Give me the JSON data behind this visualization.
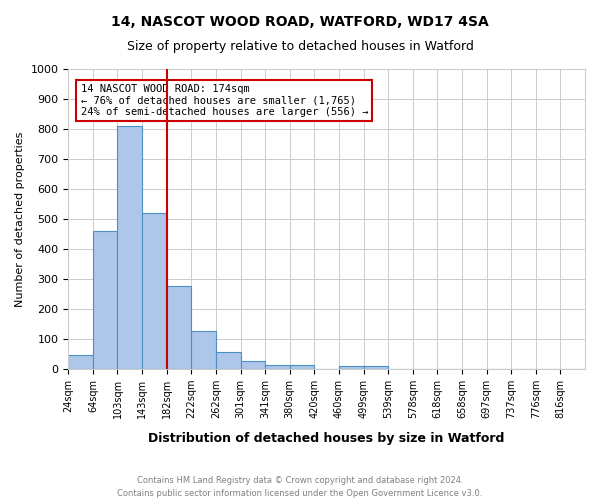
{
  "title1": "14, NASCOT WOOD ROAD, WATFORD, WD17 4SA",
  "title2": "Size of property relative to detached houses in Watford",
  "xlabel": "Distribution of detached houses by size in Watford",
  "ylabel": "Number of detached properties",
  "footnote1": "Contains HM Land Registry data © Crown copyright and database right 2024.",
  "footnote2": "Contains public sector information licensed under the Open Government Licence v3.0.",
  "bin_labels": [
    "24sqm",
    "64sqm",
    "103sqm",
    "143sqm",
    "182sqm",
    "222sqm",
    "262sqm",
    "301sqm",
    "341sqm",
    "380sqm",
    "420sqm",
    "460sqm",
    "499sqm",
    "539sqm",
    "578sqm",
    "618sqm",
    "658sqm",
    "697sqm",
    "737sqm",
    "776sqm",
    "816sqm"
  ],
  "bar_heights": [
    45,
    460,
    810,
    520,
    275,
    125,
    57,
    25,
    12,
    12,
    0,
    8,
    8,
    0,
    0,
    0,
    0,
    0,
    0,
    0,
    0
  ],
  "bar_color": "#aec6e8",
  "bar_edge_color": "#4a90c4",
  "property_line_x": 4,
  "property_line_color": "#cc0000",
  "annotation_text": "14 NASCOT WOOD ROAD: 174sqm\n← 76% of detached houses are smaller (1,765)\n24% of semi-detached houses are larger (556) →",
  "annotation_box_color": "#ffffff",
  "annotation_box_edge": "#cc0000",
  "ylim": [
    0,
    1000
  ],
  "yticks": [
    0,
    100,
    200,
    300,
    400,
    500,
    600,
    700,
    800,
    900,
    1000
  ],
  "background_color": "#ffffff",
  "grid_color": "#cccccc"
}
